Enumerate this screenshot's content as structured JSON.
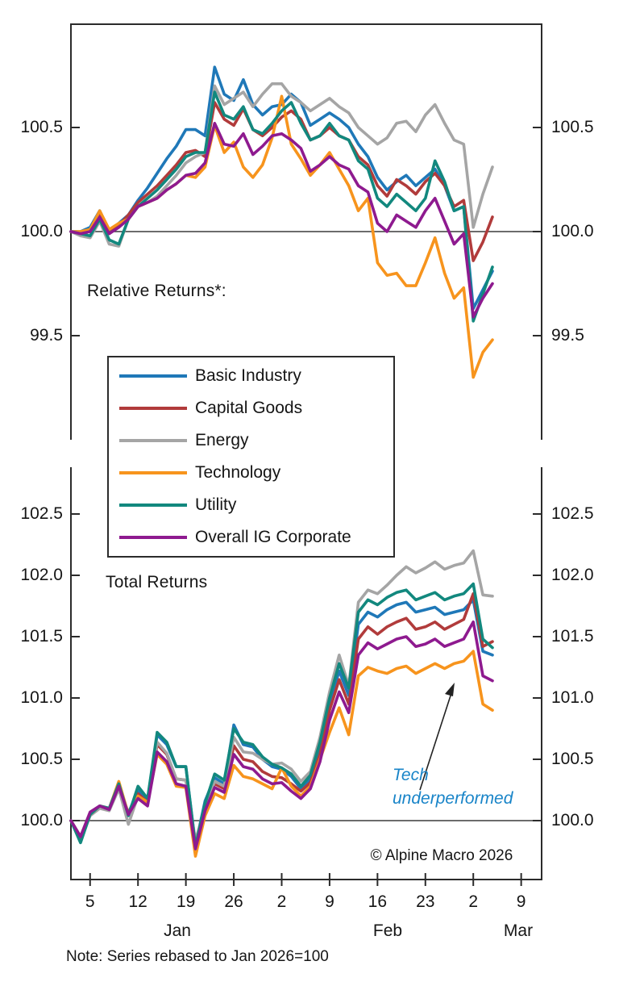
{
  "page": {
    "background": "#ffffff",
    "accent_annotation_color": "#1884C8",
    "axis_color": "#2b2b2b"
  },
  "legend": {
    "position": "middle-left, overlapping both panels"
  },
  "annotation": {
    "line1": "Tech",
    "line2": "underperformed",
    "color": "#1884C8",
    "arrow": "points up-right at Technology line"
  },
  "copyright": "© Alpine Macro 2026",
  "note": "Note: Series rebased to Jan 2026=100",
  "x_axis": {
    "tick_labels": [
      "5",
      "12",
      "19",
      "26",
      "2",
      "9",
      "16",
      "23",
      "2",
      "9"
    ],
    "tick_day_index": [
      2,
      7,
      12,
      17,
      22,
      27,
      32,
      37,
      42,
      47
    ],
    "month_labels": [
      {
        "label": "Jan"
      },
      {
        "label": "Feb"
      },
      {
        "label": "Mar"
      }
    ]
  },
  "chart_data": [
    {
      "type": "line",
      "title": "Relative Returns*:",
      "xlabel": "",
      "ylabel": "",
      "ylim": [
        99.0,
        101.0
      ],
      "ytick_values": [
        100.5,
        100.0,
        99.5
      ],
      "ytick_labels": [
        "100.5",
        "100.0",
        "99.5"
      ],
      "baseline": 100.0,
      "grid": false,
      "x": [
        "Jan 1",
        "Jan 2",
        "Jan 5",
        "Jan 6",
        "Jan 7",
        "Jan 8",
        "Jan 9",
        "Jan 12",
        "Jan 13",
        "Jan 14",
        "Jan 15",
        "Jan 16",
        "Jan 19",
        "Jan 20",
        "Jan 21",
        "Jan 22",
        "Jan 23",
        "Jan 26",
        "Jan 27",
        "Jan 28",
        "Jan 29",
        "Jan 30",
        "Feb 2",
        "Feb 3",
        "Feb 4",
        "Feb 5",
        "Feb 6",
        "Feb 9",
        "Feb 10",
        "Feb 11",
        "Feb 12",
        "Feb 13",
        "Feb 16",
        "Feb 17",
        "Feb 18",
        "Feb 19",
        "Feb 20",
        "Feb 23",
        "Feb 24",
        "Feb 25",
        "Feb 26",
        "Feb 27",
        "Mar 2",
        "Mar 3",
        "Mar 4"
      ],
      "series": [
        {
          "name": "Basic Industry",
          "color": "#1F78B8",
          "values": [
            100.0,
            100.0,
            100.02,
            100.1,
            100.0,
            100.04,
            100.08,
            100.15,
            100.21,
            100.28,
            100.35,
            100.41,
            100.49,
            100.49,
            100.46,
            100.79,
            100.66,
            100.63,
            100.73,
            100.61,
            100.56,
            100.6,
            100.61,
            100.66,
            100.62,
            100.51,
            100.54,
            100.57,
            100.54,
            100.5,
            100.42,
            100.36,
            100.26,
            100.2,
            100.24,
            100.27,
            100.22,
            100.26,
            100.3,
            100.22,
            100.1,
            100.12,
            99.63,
            99.72,
            99.81
          ]
        },
        {
          "name": "Capital Goods",
          "color": "#B13B3B",
          "values": [
            100.0,
            99.99,
            100.01,
            100.08,
            99.99,
            100.03,
            100.08,
            100.14,
            100.18,
            100.22,
            100.27,
            100.32,
            100.38,
            100.39,
            100.36,
            100.62,
            100.54,
            100.51,
            100.59,
            100.49,
            100.46,
            100.5,
            100.55,
            100.58,
            100.54,
            100.44,
            100.46,
            100.5,
            100.46,
            100.44,
            100.36,
            100.32,
            100.22,
            100.17,
            100.25,
            100.22,
            100.18,
            100.24,
            100.28,
            100.22,
            100.12,
            100.15,
            99.86,
            99.95,
            100.07
          ]
        },
        {
          "name": "Energy",
          "color": "#A5A5A5",
          "values": [
            100.0,
            99.98,
            99.97,
            100.05,
            99.94,
            99.93,
            100.06,
            100.12,
            100.14,
            100.17,
            100.22,
            100.27,
            100.33,
            100.36,
            100.38,
            100.7,
            100.61,
            100.64,
            100.67,
            100.6,
            100.66,
            100.71,
            100.71,
            100.65,
            100.62,
            100.58,
            100.61,
            100.64,
            100.6,
            100.57,
            100.5,
            100.46,
            100.42,
            100.45,
            100.52,
            100.53,
            100.48,
            100.56,
            100.61,
            100.52,
            100.44,
            100.42,
            100.02,
            100.18,
            100.31
          ]
        },
        {
          "name": "Technology",
          "color": "#F7941D",
          "values": [
            100.0,
            100.0,
            100.01,
            100.1,
            100.01,
            100.04,
            100.06,
            100.12,
            100.14,
            100.16,
            100.2,
            100.23,
            100.27,
            100.26,
            100.31,
            100.51,
            100.38,
            100.43,
            100.31,
            100.26,
            100.32,
            100.45,
            100.65,
            100.42,
            100.35,
            100.27,
            100.32,
            100.38,
            100.3,
            100.22,
            100.1,
            100.16,
            99.85,
            99.79,
            99.8,
            99.74,
            99.74,
            99.85,
            99.97,
            99.8,
            99.68,
            99.73,
            99.3,
            99.42,
            99.48
          ]
        },
        {
          "name": "Utility",
          "color": "#12887E",
          "values": [
            100.0,
            99.99,
            99.98,
            100.06,
            99.96,
            99.94,
            100.06,
            100.12,
            100.16,
            100.2,
            100.25,
            100.3,
            100.36,
            100.38,
            100.38,
            100.67,
            100.56,
            100.54,
            100.6,
            100.49,
            100.47,
            100.52,
            100.58,
            100.62,
            100.52,
            100.44,
            100.46,
            100.52,
            100.46,
            100.44,
            100.34,
            100.3,
            100.16,
            100.12,
            100.18,
            100.14,
            100.1,
            100.16,
            100.34,
            100.24,
            100.1,
            100.12,
            99.57,
            99.7,
            99.83
          ]
        },
        {
          "name": "Overall IG Corporate",
          "color": "#8E1A8F",
          "values": [
            100.0,
            99.99,
            100.0,
            100.07,
            99.99,
            100.02,
            100.06,
            100.12,
            100.14,
            100.16,
            100.2,
            100.23,
            100.27,
            100.28,
            100.33,
            100.52,
            100.42,
            100.41,
            100.47,
            100.37,
            100.41,
            100.46,
            100.47,
            100.44,
            100.4,
            100.29,
            100.32,
            100.36,
            100.32,
            100.3,
            100.22,
            100.19,
            100.04,
            100.0,
            100.08,
            100.05,
            100.02,
            100.1,
            100.16,
            100.05,
            99.94,
            99.99,
            99.59,
            99.68,
            99.75
          ]
        }
      ]
    },
    {
      "type": "line",
      "title": "Total Returns",
      "xlabel": "",
      "ylabel": "",
      "ylim": [
        99.5,
        102.9
      ],
      "ytick_values": [
        102.5,
        102.0,
        101.5,
        101.0,
        100.5,
        100.0
      ],
      "ytick_labels": [
        "102.5",
        "102.0",
        "101.5",
        "101.0",
        "100.5",
        "100.0"
      ],
      "baseline": 100.0,
      "grid": false,
      "x": [
        "Jan 1",
        "Jan 2",
        "Jan 5",
        "Jan 6",
        "Jan 7",
        "Jan 8",
        "Jan 9",
        "Jan 12",
        "Jan 13",
        "Jan 14",
        "Jan 15",
        "Jan 16",
        "Jan 19",
        "Jan 20",
        "Jan 21",
        "Jan 22",
        "Jan 23",
        "Jan 26",
        "Jan 27",
        "Jan 28",
        "Jan 29",
        "Jan 30",
        "Feb 2",
        "Feb 3",
        "Feb 4",
        "Feb 5",
        "Feb 6",
        "Feb 9",
        "Feb 10",
        "Feb 11",
        "Feb 12",
        "Feb 13",
        "Feb 16",
        "Feb 17",
        "Feb 18",
        "Feb 19",
        "Feb 20",
        "Feb 23",
        "Feb 24",
        "Feb 25",
        "Feb 26",
        "Feb 27",
        "Mar 2",
        "Mar 3",
        "Mar 4"
      ],
      "series": [
        {
          "name": "Basic Industry",
          "color": "#1F78B8",
          "values": [
            100.0,
            99.86,
            100.06,
            100.12,
            100.1,
            100.28,
            100.06,
            100.25,
            100.17,
            100.7,
            100.62,
            100.44,
            100.44,
            99.8,
            100.16,
            100.35,
            100.3,
            100.78,
            100.62,
            100.6,
            100.5,
            100.44,
            100.42,
            100.36,
            100.26,
            100.34,
            100.6,
            100.95,
            101.22,
            101.02,
            101.6,
            101.7,
            101.66,
            101.72,
            101.76,
            101.78,
            101.7,
            101.72,
            101.74,
            101.68,
            101.7,
            101.72,
            101.8,
            101.38,
            101.35
          ]
        },
        {
          "name": "Capital Goods",
          "color": "#B13B3B",
          "values": [
            100.0,
            99.87,
            100.06,
            100.11,
            100.09,
            100.28,
            100.06,
            100.22,
            100.15,
            100.62,
            100.54,
            100.34,
            100.33,
            99.82,
            100.12,
            100.3,
            100.26,
            100.61,
            100.5,
            100.48,
            100.4,
            100.36,
            100.35,
            100.3,
            100.24,
            100.31,
            100.54,
            100.9,
            101.15,
            100.95,
            101.48,
            101.58,
            101.52,
            101.58,
            101.62,
            101.65,
            101.56,
            101.58,
            101.62,
            101.56,
            101.6,
            101.64,
            101.85,
            101.42,
            101.46
          ]
        },
        {
          "name": "Energy",
          "color": "#A5A5A5",
          "values": [
            100.0,
            99.84,
            100.04,
            100.1,
            100.08,
            100.26,
            99.97,
            100.2,
            100.14,
            100.64,
            100.55,
            100.34,
            100.33,
            99.84,
            100.1,
            100.32,
            100.28,
            100.68,
            100.56,
            100.55,
            100.5,
            100.46,
            100.47,
            100.42,
            100.32,
            100.4,
            100.68,
            101.05,
            101.35,
            101.1,
            101.78,
            101.88,
            101.85,
            101.92,
            102.0,
            102.07,
            102.02,
            102.06,
            102.11,
            102.05,
            102.08,
            102.1,
            102.2,
            101.84,
            101.83
          ]
        },
        {
          "name": "Technology",
          "color": "#F7941D",
          "values": [
            100.0,
            99.85,
            100.05,
            100.12,
            100.1,
            100.32,
            100.05,
            100.2,
            100.15,
            100.54,
            100.46,
            100.28,
            100.27,
            99.71,
            100.04,
            100.22,
            100.18,
            100.45,
            100.36,
            100.34,
            100.3,
            100.26,
            100.43,
            100.28,
            100.2,
            100.28,
            100.5,
            100.72,
            100.92,
            100.7,
            101.18,
            101.25,
            101.22,
            101.2,
            101.24,
            101.26,
            101.2,
            101.24,
            101.28,
            101.24,
            101.28,
            101.3,
            101.38,
            100.95,
            100.9
          ]
        },
        {
          "name": "Utility",
          "color": "#12887E",
          "values": [
            100.0,
            99.82,
            100.05,
            100.12,
            100.1,
            100.3,
            100.04,
            100.28,
            100.18,
            100.72,
            100.64,
            100.44,
            100.44,
            99.79,
            100.14,
            100.38,
            100.33,
            100.75,
            100.64,
            100.62,
            100.52,
            100.46,
            100.43,
            100.38,
            100.28,
            100.37,
            100.64,
            101.0,
            101.28,
            101.08,
            101.7,
            101.8,
            101.76,
            101.82,
            101.86,
            101.88,
            101.8,
            101.83,
            101.86,
            101.8,
            101.83,
            101.85,
            101.93,
            101.48,
            101.41
          ]
        },
        {
          "name": "Overall IG Corporate",
          "color": "#8E1A8F",
          "values": [
            100.0,
            99.87,
            100.07,
            100.12,
            100.09,
            100.28,
            100.05,
            100.18,
            100.12,
            100.56,
            100.48,
            100.3,
            100.28,
            99.77,
            100.08,
            100.27,
            100.23,
            100.54,
            100.44,
            100.42,
            100.34,
            100.3,
            100.31,
            100.24,
            100.18,
            100.26,
            100.48,
            100.82,
            101.05,
            100.88,
            101.35,
            101.45,
            101.4,
            101.44,
            101.48,
            101.5,
            101.42,
            101.44,
            101.48,
            101.42,
            101.45,
            101.48,
            101.62,
            101.18,
            101.14
          ]
        }
      ]
    }
  ]
}
